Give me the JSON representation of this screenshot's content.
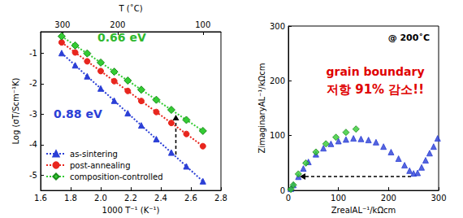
{
  "chart_data": [
    {
      "type": "line",
      "xlabel": "1000 T⁻¹ (K⁻¹)",
      "ylabel": "Log (σT/Scm⁻¹K)",
      "x2label": "T (˚C)",
      "xlim": [
        1.6,
        2.8
      ],
      "xticks": [
        1.6,
        1.8,
        {
          "value": 2,
          "label": "2.0"
        },
        2.2,
        2.4,
        2.6,
        2.8
      ],
      "x2lim": [
        1.6,
        2.8
      ],
      "x2ticks": [
        {
          "value": 1.745,
          "label": "300"
        },
        {
          "value": 2.113,
          "label": "200"
        },
        {
          "value": 2.68,
          "label": "100"
        }
      ],
      "ylim": [
        -5.5,
        -0.3
      ],
      "yticks": [
        -5,
        -4,
        -3,
        -2,
        -1
      ],
      "x": [
        1.74,
        1.83,
        1.91,
        2.0,
        2.09,
        2.18,
        2.27,
        2.37,
        2.47,
        2.57,
        2.68
      ],
      "series": [
        {
          "name": "as-sintering",
          "color": "#2b3fd6",
          "marker": "triangle",
          "line_style": "dotted",
          "values": [
            -1.0,
            -1.4,
            -1.76,
            -2.16,
            -2.56,
            -2.97,
            -3.37,
            -3.82,
            -4.26,
            -4.71,
            -5.2
          ]
        },
        {
          "name": "post-annealing",
          "color": "#e8261e",
          "marker": "circle",
          "line_style": "dotted",
          "values": [
            -0.65,
            -0.98,
            -1.27,
            -1.59,
            -1.92,
            -2.24,
            -2.57,
            -2.93,
            -3.29,
            -3.65,
            -4.05
          ]
        },
        {
          "name": "composition-controlled",
          "color": "#33cc33",
          "marker": "diamond",
          "line_style": "dotted",
          "values": [
            -0.45,
            -0.75,
            -1.01,
            -1.31,
            -1.61,
            -1.9,
            -2.2,
            -2.53,
            -2.86,
            -3.19,
            -3.55
          ]
        }
      ],
      "legend": "lower left",
      "grid": false,
      "annotations": [
        {
          "text": "0.66 eV",
          "color": "#2eb82e"
        },
        {
          "text": "0.88 eV",
          "color": "#2b3fd6"
        }
      ]
    },
    {
      "type": "scatter",
      "title": "@ 200˚C",
      "xlabel": "ZrealAL⁻¹/kΩcm",
      "ylabel": "ZimaginaryAL⁻¹/kΩcm",
      "xlim": [
        0,
        300
      ],
      "xticks": [
        0,
        100,
        200,
        300
      ],
      "ylim": [
        0,
        300
      ],
      "yticks": [
        0,
        100,
        200,
        300
      ],
      "series": [
        {
          "color": "#2b3fd6",
          "marker": "triangle",
          "x": [
            5,
            10,
            20,
            30,
            40,
            55,
            70,
            85,
            100,
            115,
            130,
            145,
            160,
            175,
            190,
            205,
            220,
            232,
            242,
            250,
            258,
            266,
            274,
            282,
            290,
            298
          ],
          "values": [
            3,
            10,
            25,
            40,
            52,
            66,
            77,
            85,
            90,
            93,
            95,
            94,
            92,
            88,
            80,
            70,
            58,
            46,
            36,
            31,
            32,
            42,
            55,
            68,
            80,
            95
          ]
        },
        {
          "color": "#33cc33",
          "marker": "diamond",
          "x": [
            5,
            10,
            20,
            35,
            55,
            75,
            95,
            115,
            135
          ],
          "values": [
            2,
            10,
            30,
            50,
            70,
            85,
            97,
            106,
            112
          ]
        }
      ],
      "grid": false,
      "annotations": [
        {
          "text": "grain boundary",
          "color": "#e00000"
        },
        {
          "text": "저항 91% 감소!!",
          "color": "#e00000"
        }
      ]
    }
  ]
}
